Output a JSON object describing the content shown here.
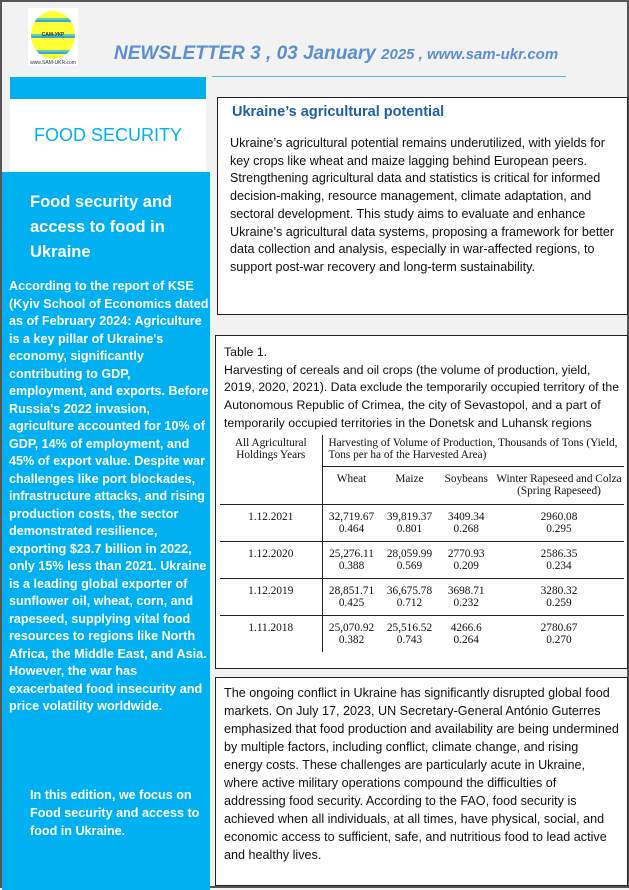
{
  "header": {
    "logo_text": "САМ-УКР",
    "logo_url": "www.SAM-UKR.com",
    "newsletter": "NEWSLETTER  3  , 03 January ",
    "year": "2025 , www.sam-ukr.com"
  },
  "sidebar": {
    "section": "FOOD SECURITY",
    "title": "Food security and access to food in Ukraine",
    "body": "According to the report of KSE (Kyiv School of Economics dated as of February 2024: Agriculture is a key pillar of Ukraine's economy, significantly contributing to GDP, employment, and exports. Before Russia's 2022 invasion, agriculture accounted for 10% of GDP, 14% of employment, and 45% of export value. Despite war challenges like port blockades, infrastructure attacks, and rising production costs, the sector demonstrated resilience, exporting $23.7 billion in 2022, only 15% less than 2021. Ukraine is a leading global exporter of sunflower oil, wheat, corn, and rapeseed, supplying vital food resources to regions like North Africa, the Middle East, and Asia. However, the war has exacerbated food insecurity and price volatility worldwide.",
    "note": "In this edition, we focus on Food security and access to food in Ukraine."
  },
  "article1": {
    "title": "Ukraine’s agricultural potential",
    "body": "Ukraine’s agricultural potential remains underutilized, with yields for key crops like wheat and maize lagging behind European peers. Strengthening agricultural data and statistics is critical for informed decision-making, resource management, climate adaptation, and sectoral development. This study aims to evaluate and enhance Ukraine’s agricultural data systems, proposing a framework for better data collection and analysis, especially in war-affected regions, to support post-war recovery and long-term sustainability."
  },
  "table": {
    "label": "Table 1.",
    "caption": "Harvesting of cereals and oil crops (the volume of production, yield, 2019, 2020, 2021). Data exclude the temporarily occupied territory of the Autonomous Republic of Crimea, the city of Sevastopol, and a part of temporarily occupied territories in the Donetsk and Luhansk regions",
    "corner": "All Agricultural Holdings Years",
    "group": "Harvesting of Volume of Production, Thousands of Tons (Yield, Tons per ha of the Harvested Area)",
    "columns": [
      "Wheat",
      "Maize",
      "Soybeans",
      "Winter Rapeseed and Colza (Spring Rapeseed)"
    ],
    "rows": [
      {
        "year": "1.12.2021",
        "vals": [
          [
            "32,719.67",
            "0.464"
          ],
          [
            "39,819.37",
            "0.801"
          ],
          [
            "3409.34",
            "0.268"
          ],
          [
            "2960.08",
            "0.295"
          ]
        ]
      },
      {
        "year": "1.12.2020",
        "vals": [
          [
            "25,276.11",
            "0.388"
          ],
          [
            "28,059.99",
            "0.569"
          ],
          [
            "2770.93",
            "0.209"
          ],
          [
            "2586.35",
            "0.234"
          ]
        ]
      },
      {
        "year": "1.12.2019",
        "vals": [
          [
            "28,851.71",
            "0.425"
          ],
          [
            "36,675.78",
            "0.712"
          ],
          [
            "3698.71",
            "0.232"
          ],
          [
            "3280.32",
            "0.259"
          ]
        ]
      },
      {
        "year": "1.11.2018",
        "vals": [
          [
            "25,070.92",
            "0.382"
          ],
          [
            "25,516.52",
            "0.743"
          ],
          [
            "4266.6",
            "0.264"
          ],
          [
            "2780.67",
            "0.270"
          ]
        ]
      }
    ]
  },
  "article2": {
    "body": "The ongoing conflict in Ukraine has significantly disrupted global food markets. On July 17, 2023, UN Secretary-General António Guterres emphasized that food production and availability are being undermined by multiple factors, including conflict, climate change, and rising energy costs. These challenges are particularly acute in Ukraine, where active military operations compound the difficulties of addressing food security. According to the FAO, food security is achieved when all individuals, at all times, have physical, social, and economic access to sufficient, safe, and nutritious food to lead active and healthy lives."
  }
}
